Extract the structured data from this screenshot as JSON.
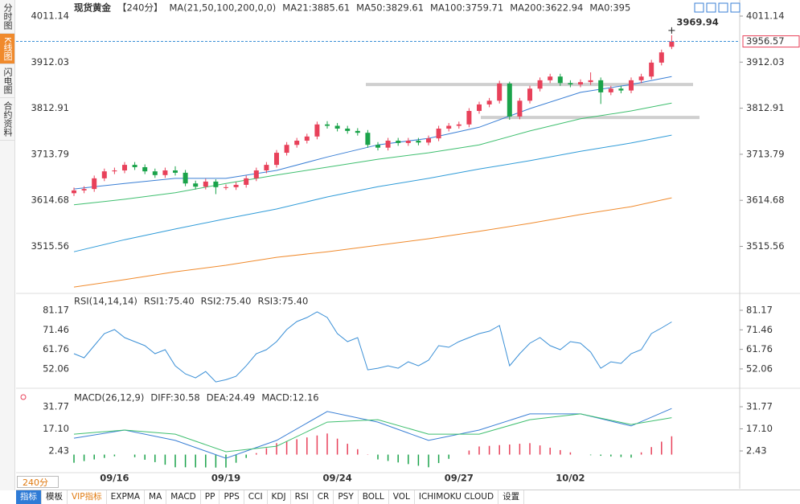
{
  "chart_data": [
    {
      "type": "candlestick",
      "title": "现货黄金",
      "period_label": "【240分】",
      "indicator_label": "MA(21,50,100,200,0,0)",
      "categories": [
        null,
        null,
        null,
        null,
        "09/16",
        null,
        null,
        null,
        null,
        null,
        null,
        null,
        null,
        null,
        null,
        "09/19",
        null,
        null,
        null,
        null,
        null,
        null,
        null,
        null,
        null,
        null,
        "09/24",
        null,
        null,
        null,
        null,
        null,
        null,
        null,
        null,
        null,
        null,
        null,
        "09/27",
        null,
        null,
        null,
        null,
        null,
        null,
        null,
        null,
        null,
        null,
        "10/02",
        null,
        null,
        null,
        null,
        null,
        null,
        null,
        null,
        null,
        null
      ],
      "open": [
        3630,
        3636,
        3639,
        3662,
        3677,
        3679,
        3691,
        3686,
        3677,
        3669,
        3679,
        3674,
        3651,
        3644,
        3655,
        3643,
        3643,
        3648,
        3662,
        3679,
        3691,
        3717,
        3734,
        3743,
        3752,
        3778,
        3775,
        3769,
        3764,
        3760,
        3734,
        3728,
        3743,
        3738,
        3743,
        3739,
        3748,
        3769,
        3775,
        3778,
        3807,
        3821,
        3829,
        3866,
        3795,
        3829,
        3855,
        3873,
        3881,
        3867,
        3864,
        3869,
        3873,
        3847,
        3855,
        3851,
        3873,
        3881,
        3911,
        3945
      ],
      "high": [
        3642,
        3645,
        3668,
        3683,
        3685,
        3697,
        3697,
        3692,
        3683,
        3685,
        3688,
        3680,
        3657,
        3661,
        3660,
        3649,
        3654,
        3668,
        3685,
        3697,
        3723,
        3740,
        3749,
        3758,
        3784,
        3785,
        3781,
        3775,
        3770,
        3766,
        3740,
        3749,
        3749,
        3749,
        3749,
        3754,
        3775,
        3781,
        3784,
        3813,
        3827,
        3835,
        3872,
        3870,
        3835,
        3861,
        3879,
        3887,
        3887,
        3873,
        3875,
        3890,
        3879,
        3861,
        3861,
        3879,
        3887,
        3917,
        3939,
        3969.94
      ],
      "low": [
        3624,
        3630,
        3633,
        3656,
        3671,
        3673,
        3680,
        3671,
        3663,
        3663,
        3668,
        3645,
        3638,
        3638,
        3628,
        3637,
        3637,
        3642,
        3656,
        3673,
        3685,
        3711,
        3728,
        3737,
        3746,
        3769,
        3763,
        3758,
        3754,
        3728,
        3722,
        3722,
        3732,
        3732,
        3733,
        3733,
        3742,
        3763,
        3769,
        3772,
        3801,
        3815,
        3823,
        3788,
        3789,
        3823,
        3849,
        3867,
        3861,
        3858,
        3858,
        3863,
        3822,
        3841,
        3845,
        3845,
        3867,
        3875,
        3905,
        3940
      ],
      "close": [
        3636,
        3639,
        3662,
        3677,
        3679,
        3691,
        3686,
        3677,
        3669,
        3679,
        3674,
        3651,
        3644,
        3655,
        3643,
        3643,
        3648,
        3662,
        3679,
        3691,
        3717,
        3734,
        3743,
        3752,
        3778,
        3775,
        3769,
        3764,
        3760,
        3734,
        3728,
        3743,
        3738,
        3743,
        3739,
        3748,
        3769,
        3775,
        3778,
        3807,
        3821,
        3829,
        3866,
        3795,
        3829,
        3855,
        3873,
        3881,
        3867,
        3864,
        3869,
        3873,
        3847,
        3855,
        3851,
        3873,
        3881,
        3911,
        3933,
        3956.57
      ],
      "up_color": "#e8415a",
      "down_color": "#1aa34a",
      "lines": [
        {
          "name": "MA21:3885.61",
          "color": "#3a7fd5",
          "x": [
            0,
            5,
            10,
            15,
            20,
            25,
            30,
            35,
            40,
            45,
            50,
            55,
            59
          ],
          "values": [
            3639,
            3651,
            3662,
            3662,
            3679,
            3708,
            3734,
            3748,
            3772,
            3812,
            3847,
            3864,
            3881
          ]
        },
        {
          "name": "MA50:3829.61",
          "color": "#3fbf6f",
          "x": [
            0,
            5,
            10,
            15,
            20,
            25,
            30,
            35,
            40,
            45,
            50,
            55,
            59
          ],
          "values": [
            3605,
            3617,
            3631,
            3651,
            3669,
            3686,
            3703,
            3717,
            3734,
            3764,
            3790,
            3807,
            3824
          ]
        },
        {
          "name": "MA100:3759.71",
          "color": "#2f9bd8",
          "x": [
            0,
            5,
            10,
            15,
            20,
            25,
            30,
            35,
            40,
            45,
            50,
            55,
            59
          ],
          "values": [
            3504,
            3530,
            3553,
            3575,
            3596,
            3622,
            3644,
            3662,
            3682,
            3700,
            3720,
            3738,
            3755
          ]
        },
        {
          "name": "MA200:3622.94",
          "color": "#f08a2c",
          "x": [
            0,
            5,
            10,
            15,
            20,
            25,
            30,
            35,
            40,
            45,
            50,
            55,
            59
          ],
          "values": [
            3428,
            3444,
            3461,
            3475,
            3492,
            3504,
            3518,
            3532,
            3548,
            3565,
            3584,
            3601,
            3620
          ]
        }
      ],
      "legend_extra": [
        {
          "name": "MA0:395",
          "color": "#d88ee0"
        }
      ],
      "levels": [
        3864,
        3793
      ],
      "ylim": [
        3423.04,
        4037.09
      ],
      "yticks": [
        3515.56,
        3614.68,
        3713.79,
        3812.91,
        3912.03,
        4011.14
      ],
      "grid": false
    },
    {
      "type": "line",
      "title": "RSI(14,14,14)",
      "series": [
        {
          "name": "RSI1:75.40",
          "color": "#3a8fd6",
          "values": [
            59.6,
            57.6,
            63.6,
            69.6,
            71.6,
            67.6,
            65.6,
            63.6,
            59.6,
            61.6,
            53.6,
            49.6,
            47.6,
            50.8,
            45.6,
            46.7,
            48.4,
            53.6,
            59.6,
            61.6,
            65.6,
            71.6,
            75.6,
            77.6,
            80.4,
            77.6,
            69.6,
            65.6,
            67.6,
            51.6,
            52.4,
            53.6,
            52.4,
            55.6,
            53.6,
            56.4,
            63.6,
            62.8,
            65.6,
            67.6,
            69.6,
            70.8,
            73.6,
            53.6,
            59.6,
            64.8,
            67.6,
            63.6,
            61.6,
            65.6,
            64.8,
            60.4,
            52.4,
            55.6,
            54.8,
            59.6,
            61.6,
            69.6,
            72.4,
            75.4
          ]
        }
      ],
      "legend_extra": [
        {
          "name": "RSI2:75.40",
          "color": "#4cbf7f"
        },
        {
          "name": "RSI3:75.40",
          "color": "#49a6dc"
        }
      ],
      "ylim": [
        42.85,
        87.56
      ],
      "yticks": [
        52.06,
        61.76,
        71.46,
        81.17
      ],
      "grid": false
    },
    {
      "type": "macd",
      "title": "MACD(26,12,9)",
      "lines": [
        {
          "name": "DIFF:30.58",
          "color": "#3a7fd5",
          "x": [
            0,
            5,
            10,
            15,
            20,
            25,
            30,
            35,
            40,
            45,
            50,
            55,
            59
          ],
          "values": [
            10.9,
            16.3,
            9.4,
            -2.4,
            9.4,
            28.6,
            21.6,
            9.4,
            16.3,
            27,
            27,
            19,
            30.58
          ]
        },
        {
          "name": "DEA:24.49",
          "color": "#3fbf6f",
          "x": [
            0,
            5,
            10,
            15,
            20,
            25,
            30,
            35,
            40,
            45,
            50,
            55,
            59
          ],
          "values": [
            13.6,
            16.3,
            13.6,
            1.9,
            5.6,
            21.6,
            23.2,
            13.6,
            13.6,
            23.2,
            27,
            20,
            24.49
          ]
        }
      ],
      "histogram": {
        "name": "MACD:12.16",
        "color": "#49a6dc",
        "up_color": "#e8415a",
        "down_color": "#1aa34a",
        "values": [
          -5.4,
          -4.3,
          -3.2,
          -2.2,
          -1.1,
          0,
          -1.7,
          -3.4,
          -5,
          -6.7,
          -8.4,
          -8.4,
          -8.5,
          -8.5,
          -8.6,
          -8.6,
          -5.4,
          -2.2,
          1,
          4.3,
          7.6,
          8.9,
          10.2,
          11.4,
          12.7,
          14,
          10.6,
          7.2,
          3.6,
          0.2,
          -3.2,
          -4.2,
          -5.2,
          -6.3,
          -7.4,
          -8.4,
          -5.6,
          -2.8,
          0,
          2.7,
          5.4,
          5.8,
          6.3,
          6.7,
          7.2,
          7.6,
          6.1,
          4.6,
          3,
          1.5,
          0,
          -0.4,
          -0.8,
          -1.2,
          -1.6,
          -2,
          1.5,
          5,
          8.6,
          12.16
        ]
      },
      "ylim": [
        -13.04,
        41.37
      ],
      "yticks": [
        2.43,
        {
          "value": 17.1,
          "label": "17.10"
        },
        31.77
      ],
      "grid": false
    }
  ],
  "ui": {
    "sidebar": [
      "分时图",
      "K线图",
      "闪电图",
      "合约资料"
    ],
    "period": "240分",
    "toolbar": [
      "指标",
      "模板",
      "VIP指标",
      "EXPMA",
      "MA",
      "MACD",
      "PP",
      "PPS",
      "CCI",
      "KDJ",
      "RSI",
      "CR",
      "PSY",
      "BOLL",
      "VOL",
      "ICHIMOKU CLOUD",
      "设置"
    ]
  }
}
